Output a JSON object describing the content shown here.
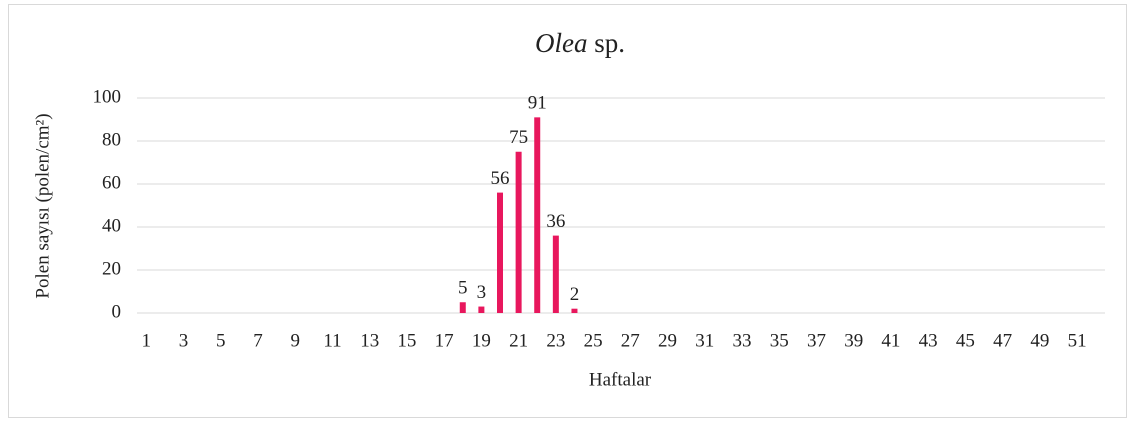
{
  "chart_data": {
    "type": "bar",
    "title": [
      "Olea",
      "sp."
    ],
    "x_label": "Haftalar",
    "y_label": "Polen sayısı (polen/cm²)",
    "categories": [
      "1",
      null,
      "3",
      null,
      "5",
      null,
      "7",
      null,
      "9",
      null,
      "11",
      null,
      "13",
      null,
      "15",
      null,
      "17",
      null,
      "19",
      null,
      "21",
      null,
      "23",
      null,
      "25",
      null,
      "27",
      null,
      "29",
      null,
      "31",
      null,
      "33",
      null,
      "35",
      null,
      "37",
      null,
      "39",
      null,
      "41",
      null,
      "43",
      null,
      "45",
      null,
      "47",
      null,
      "49",
      null,
      "51",
      null
    ],
    "values": [
      0,
      0,
      0,
      0,
      0,
      0,
      0,
      0,
      0,
      0,
      0,
      0,
      0,
      0,
      0,
      0,
      0,
      5,
      3,
      56,
      75,
      91,
      36,
      2,
      0,
      0,
      0,
      0,
      0,
      0,
      0,
      0,
      0,
      0,
      0,
      0,
      0,
      0,
      0,
      0,
      0,
      0,
      0,
      0,
      0,
      0,
      0,
      0,
      0,
      0,
      0,
      0
    ],
    "value_labels": [
      null,
      null,
      null,
      null,
      null,
      null,
      null,
      null,
      null,
      null,
      null,
      null,
      null,
      null,
      null,
      null,
      null,
      "5",
      "3",
      "56",
      "75",
      "91",
      "36",
      "2",
      null,
      null,
      null,
      null,
      null,
      null,
      null,
      null,
      null,
      null,
      null,
      null,
      null,
      null,
      null,
      null,
      null,
      null,
      null,
      null,
      null,
      null,
      null,
      null,
      null,
      null,
      null,
      null
    ],
    "color": "#e8175d",
    "ylim": [
      0,
      100
    ],
    "yticks": [
      0,
      20,
      40,
      60,
      80,
      100
    ],
    "grid": true
  }
}
